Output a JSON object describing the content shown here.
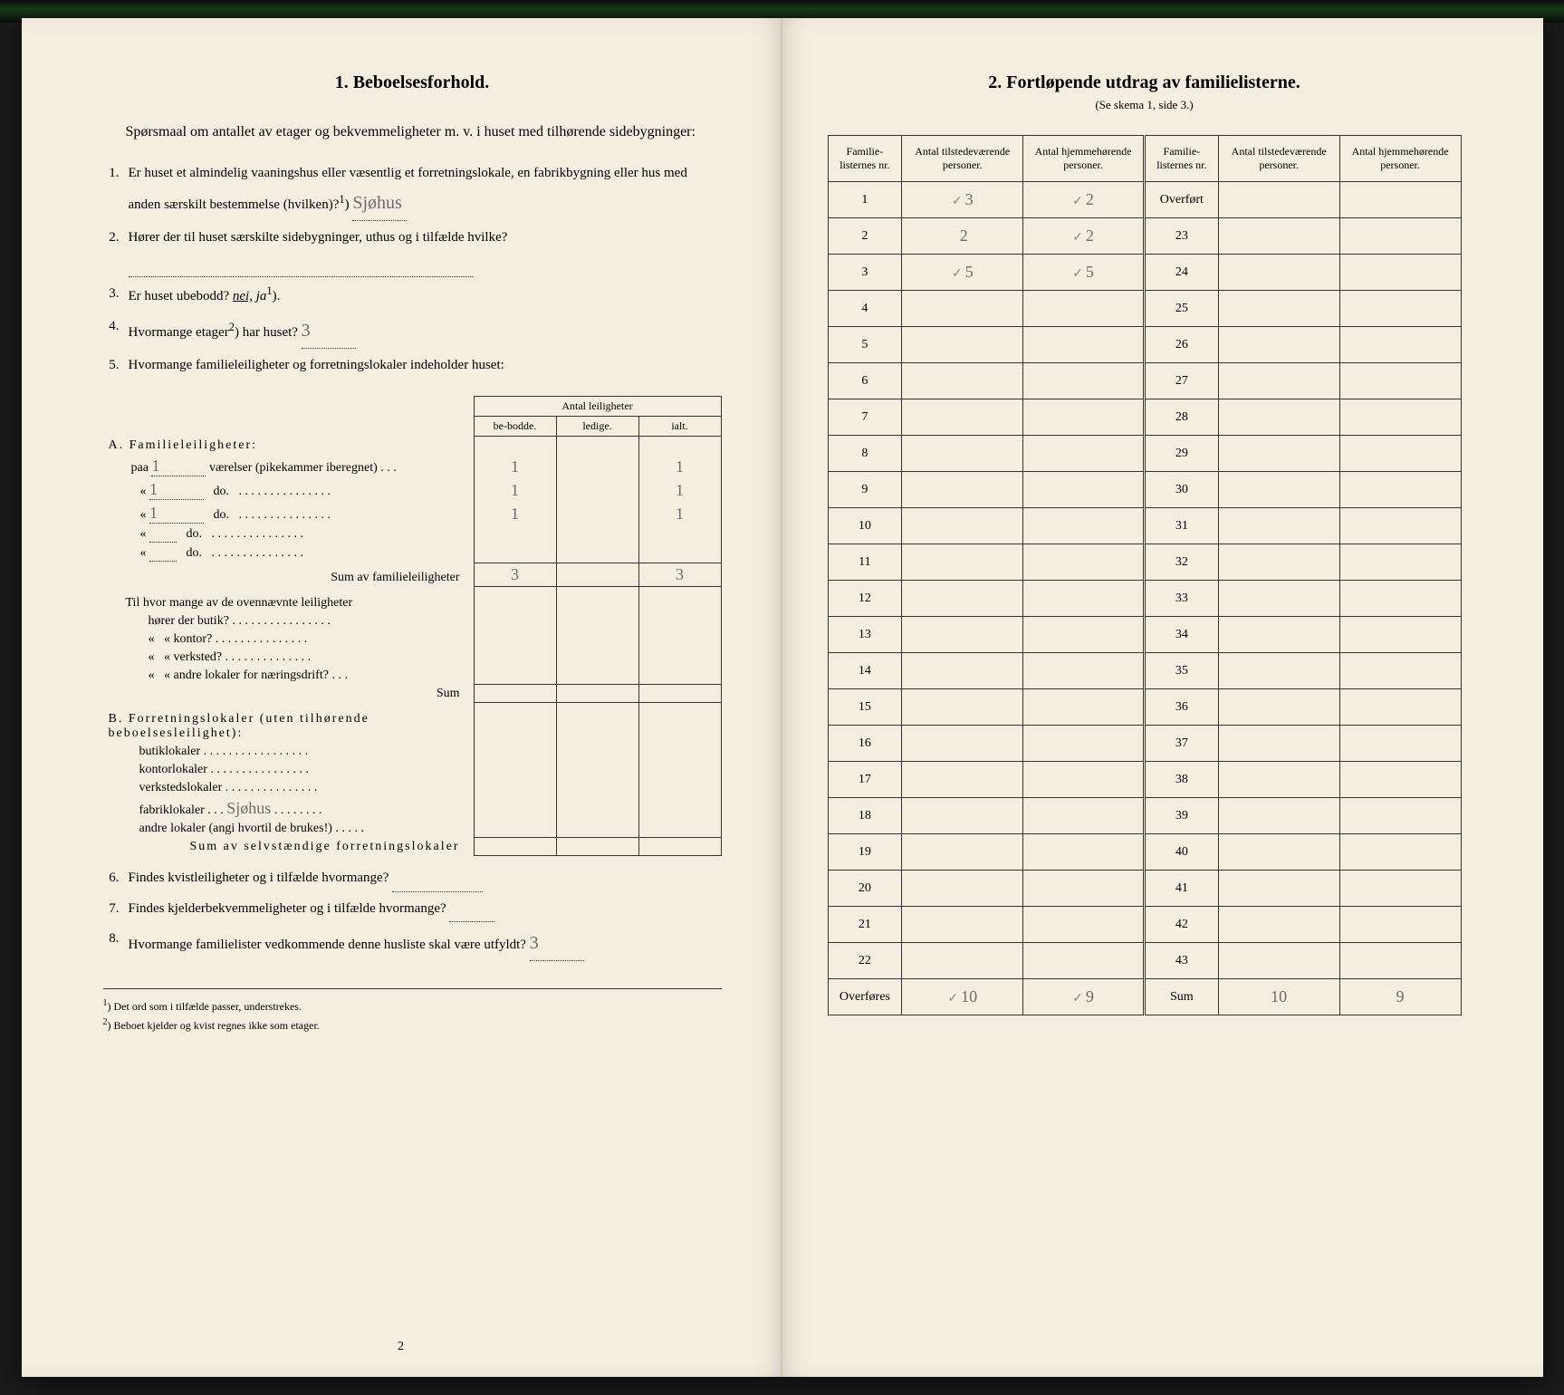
{
  "left": {
    "title": "1.   Beboelsesforhold.",
    "intro": "Spørsmaal om antallet av etager og bekvemmeligheter m. v. i huset med tilhørende sidebygninger:",
    "q1_text": "Er huset et almindelig vaaningshus eller væsentlig et forretningslokale, en fabrikbygning eller hus med anden særskilt bestemmelse (hvilken)?",
    "q1_sup": "1",
    "q1_answer": "Sjøhus",
    "q2_text": "Hører der til huset særskilte sidebygninger, uthus og i tilfælde hvilke?",
    "q3_text_a": "Er huset ubebodd?",
    "q3_nei": "nei,",
    "q3_ja": "ja",
    "q3_sup": "1",
    "q4_text": "Hvormange etager",
    "q4_sup": "2",
    "q4_text_b": ") har huset?",
    "q4_answer": "3",
    "q5_text": "Hvormange familieleiligheter og forretningslokaler indeholder huset:",
    "tbl_header": "Antal leiligheter",
    "tbl_h1": "be-bodde.",
    "tbl_h2": "ledige.",
    "tbl_h3": "ialt.",
    "secA_title": "A. Familieleiligheter:",
    "rowA1_label": "paa",
    "rowA1_val": "1",
    "rowA1_text": "værelser (pikekammer iberegnet) . . .",
    "rowA1_c1": "1",
    "rowA1_c3": "1",
    "rowA2_val": "1",
    "rowA2_text": "do.",
    "rowA2_c1": "1",
    "rowA2_c3": "1",
    "rowA3_val": "1",
    "rowA3_text": "do.",
    "rowA3_c1": "1",
    "rowA3_c3": "1",
    "rowA4_text": "do.",
    "rowA5_text": "do.",
    "sumA_text": "Sum av familieleiligheter",
    "sumA_c1": "3",
    "sumA_c3": "3",
    "tilhvor1": "Til hvor mange av de ovennævnte leiligheter",
    "tilhvor2": "hører der butik?",
    "tilhvor3": "kontor?",
    "tilhvor4": "verksted?",
    "tilhvor5": "andre lokaler for næringsdrift?",
    "sumMid": "Sum",
    "secB_title": "B. Forretningslokaler (uten tilhørende beboelsesleilighet):",
    "b1": "butiklokaler",
    "b2": "kontorlokaler",
    "b3": "verkstedslokaler",
    "b4": "fabriklokaler",
    "b4_answer": "Sjøhus",
    "b5": "andre lokaler (angi hvortil de brukes!)",
    "sumB": "Sum av selvstændige forretningslokaler",
    "q6": "Findes kvistleiligheter og i tilfælde hvormange?",
    "q7": "Findes kjelderbekvemmeligheter og i tilfælde hvormange?",
    "q8": "Hvormange familielister vedkommende denne husliste skal være utfyldt?",
    "q8_answer": "3",
    "fn1": "Det ord som i tilfælde passer, understrekes.",
    "fn2": "Beboet kjelder og kvist regnes ikke som etager.",
    "pagenum": "2"
  },
  "right": {
    "title": "2.   Fortløpende utdrag av familielisterne.",
    "subtitle": "(Se skema 1, side 3.)",
    "h1": "Familie-listernes nr.",
    "h2": "Antal tilstedeværende personer.",
    "h3": "Antal hjemmehørende personer.",
    "rows_left": [
      {
        "n": "1",
        "a": "3",
        "b": "2",
        "ta": true,
        "tb": true
      },
      {
        "n": "2",
        "a": "2",
        "b": "2",
        "ta": false,
        "tb": true
      },
      {
        "n": "3",
        "a": "5",
        "b": "5",
        "ta": true,
        "tb": true
      },
      {
        "n": "4"
      },
      {
        "n": "5"
      },
      {
        "n": "6"
      },
      {
        "n": "7"
      },
      {
        "n": "8"
      },
      {
        "n": "9"
      },
      {
        "n": "10"
      },
      {
        "n": "11"
      },
      {
        "n": "12"
      },
      {
        "n": "13"
      },
      {
        "n": "14"
      },
      {
        "n": "15"
      },
      {
        "n": "16"
      },
      {
        "n": "17"
      },
      {
        "n": "18"
      },
      {
        "n": "19"
      },
      {
        "n": "20"
      },
      {
        "n": "21"
      },
      {
        "n": "22"
      }
    ],
    "rows_right": [
      {
        "n": "Overført"
      },
      {
        "n": "23"
      },
      {
        "n": "24"
      },
      {
        "n": "25"
      },
      {
        "n": "26"
      },
      {
        "n": "27"
      },
      {
        "n": "28"
      },
      {
        "n": "29"
      },
      {
        "n": "30"
      },
      {
        "n": "31"
      },
      {
        "n": "32"
      },
      {
        "n": "33"
      },
      {
        "n": "34"
      },
      {
        "n": "35"
      },
      {
        "n": "36"
      },
      {
        "n": "37"
      },
      {
        "n": "38"
      },
      {
        "n": "39"
      },
      {
        "n": "40"
      },
      {
        "n": "41"
      },
      {
        "n": "42"
      },
      {
        "n": "43"
      }
    ],
    "overfores": "Overføres",
    "overfores_a": "10",
    "overfores_b": "9",
    "sum_label": "Sum",
    "sum_a": "10",
    "sum_b": "9"
  }
}
